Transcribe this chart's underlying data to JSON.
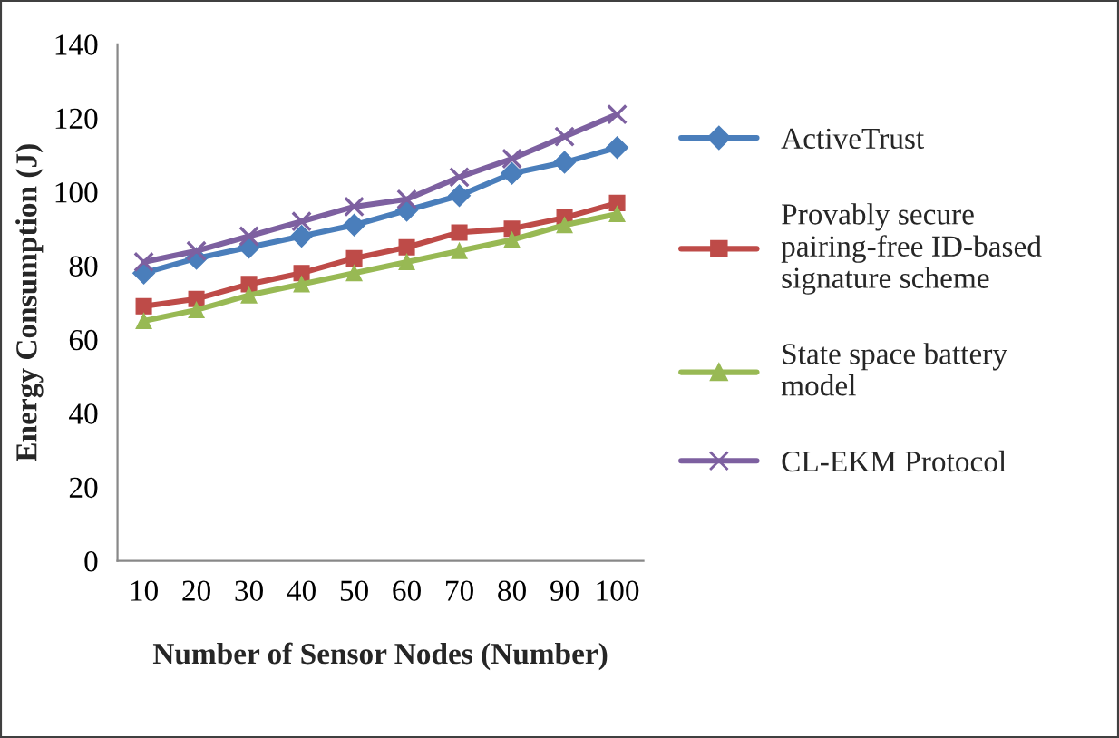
{
  "chart_data": {
    "type": "line",
    "xlabel": "Number of Sensor Nodes (Number)",
    "ylabel": "Energy Consumption (J)",
    "categories": [
      "10",
      "20",
      "30",
      "40",
      "50",
      "60",
      "70",
      "80",
      "90",
      "100"
    ],
    "series": [
      {
        "name": "ActiveTrust",
        "color": "#4a7ebb",
        "marker": "diamond",
        "values": [
          78,
          82,
          85,
          88,
          91,
          95,
          99,
          105,
          108,
          112
        ]
      },
      {
        "name": "Provably secure\npairing-free ID-based\nsignature scheme",
        "color": "#be4b48",
        "marker": "square",
        "values": [
          69,
          71,
          75,
          78,
          82,
          85,
          89,
          90,
          93,
          97
        ]
      },
      {
        "name": "State space battery\nmodel",
        "color": "#98b954",
        "marker": "triangle",
        "values": [
          65,
          68,
          72,
          75,
          78,
          81,
          84,
          87,
          91,
          94
        ]
      },
      {
        "name": "CL-EKM Protocol",
        "color": "#7d60a0",
        "marker": "cross",
        "values": [
          81,
          84,
          88,
          92,
          96,
          98,
          104,
          109,
          115,
          121
        ]
      }
    ],
    "ylim": [
      0,
      140
    ],
    "yticks": [
      0,
      20,
      40,
      60,
      80,
      100,
      120,
      140
    ],
    "grid": false,
    "legend": "right",
    "line_style": "solid"
  }
}
